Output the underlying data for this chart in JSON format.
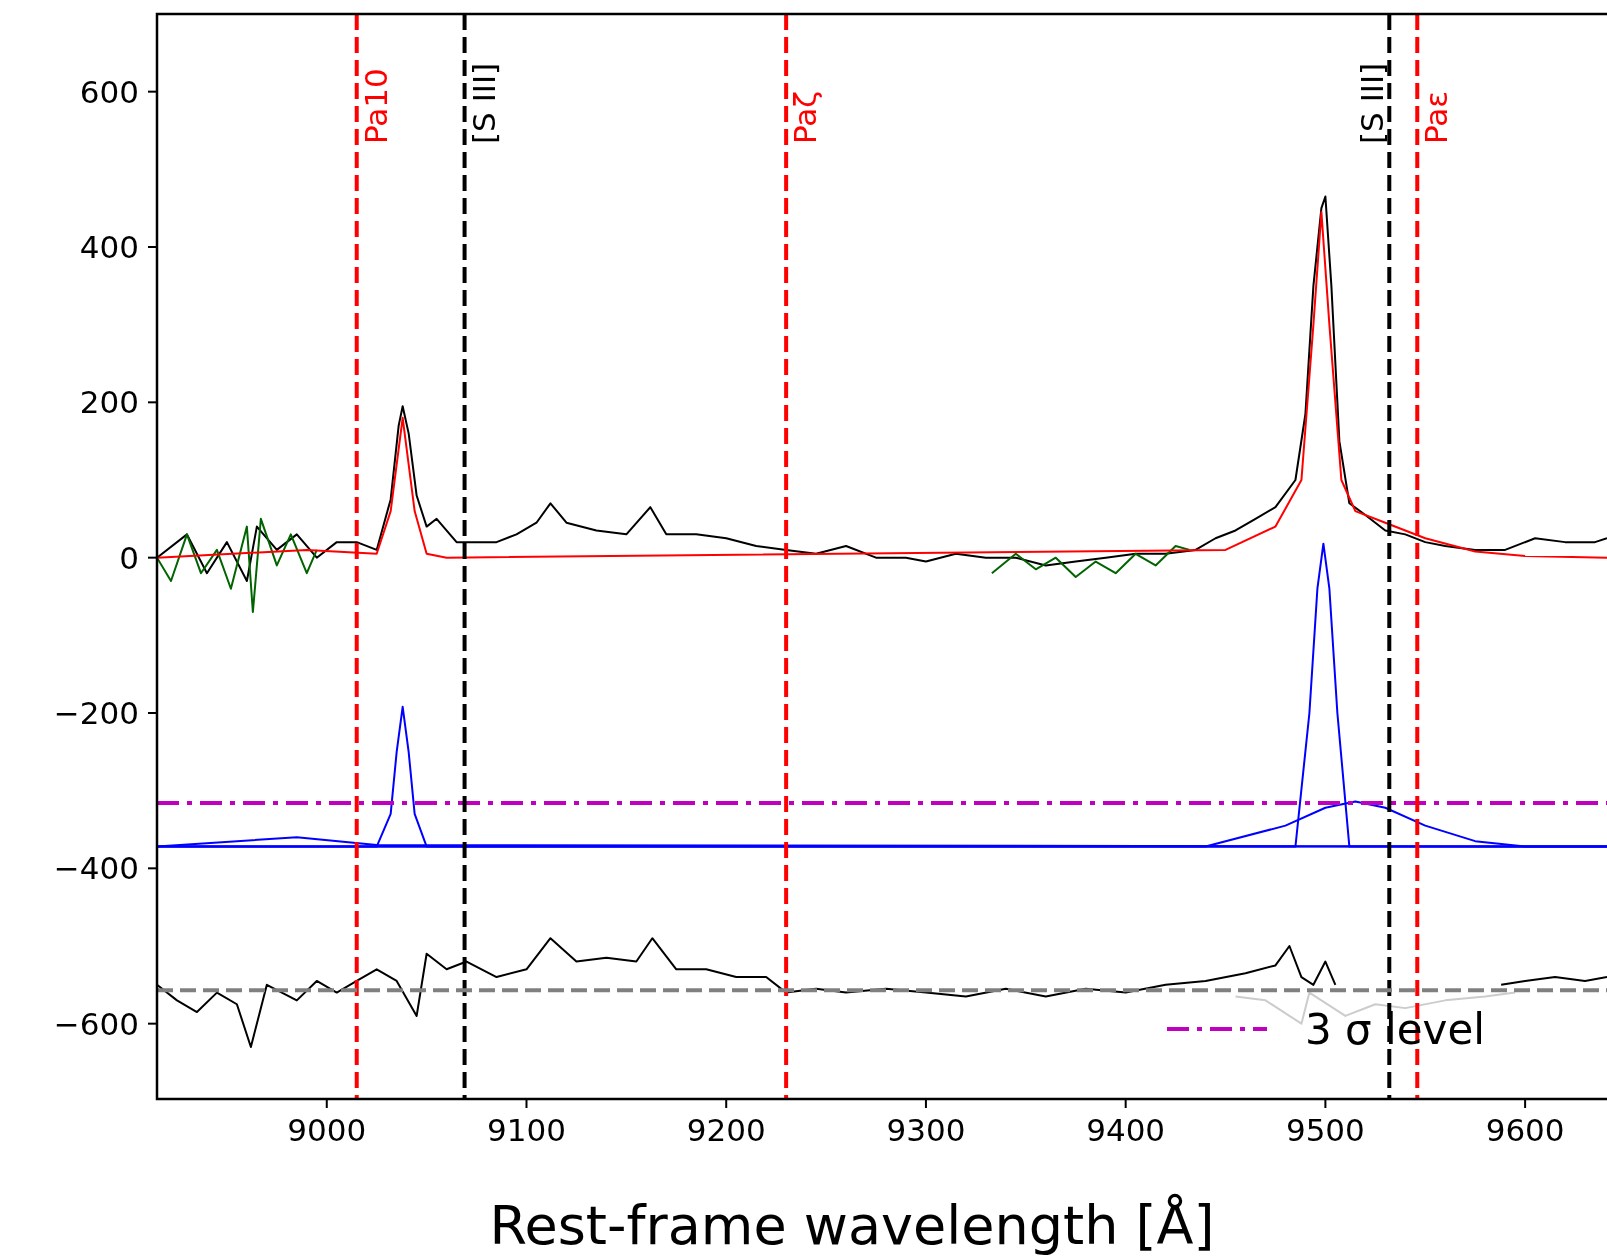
{
  "chart_data": {
    "type": "line",
    "xlabel": "Rest-frame wavelength [Å]",
    "xlim": [
      8915,
      9641
    ],
    "ylim": [
      -697,
      700
    ],
    "xticks": [
      9000,
      9100,
      9200,
      9300,
      9400,
      9500,
      9600
    ],
    "yticks": [
      {
        "value": -600,
        "label": "−600"
      },
      {
        "value": -400,
        "label": "−400"
      },
      {
        "value": -200,
        "label": "−200"
      },
      0,
      200,
      400,
      600
    ],
    "legend": "bottom right",
    "grid": false,
    "series": [
      {
        "color": "#000000",
        "x": [
          8915,
          8930,
          8940,
          8950,
          8960,
          8965,
          8975,
          8985,
          8995,
          9005,
          9015,
          9025,
          9032,
          9036,
          9038,
          9041,
          9045,
          9050,
          9055,
          9065,
          9075,
          9085,
          9095,
          9105,
          9112,
          9120,
          9135,
          9150,
          9162,
          9170,
          9185,
          9200,
          9215,
          9230,
          9245,
          9260,
          9275,
          9290,
          9300,
          9315,
          9330,
          9345,
          9360,
          9375,
          9390,
          9405,
          9420,
          9435,
          9445,
          9455,
          9465,
          9475,
          9485,
          9490,
          9494,
          9498,
          9500,
          9503,
          9507,
          9512,
          9520,
          9530,
          9540,
          9550,
          9560,
          9575,
          9590,
          9605,
          9620,
          9635,
          9641
        ],
        "values": [
          0,
          30,
          -20,
          20,
          -30,
          40,
          10,
          30,
          0,
          20,
          20,
          10,
          75,
          170,
          195,
          160,
          80,
          40,
          50,
          20,
          20,
          20,
          30,
          45,
          70,
          45,
          35,
          30,
          65,
          30,
          30,
          25,
          15,
          10,
          5,
          15,
          0,
          0,
          -5,
          5,
          0,
          0,
          -10,
          -5,
          0,
          5,
          5,
          10,
          25,
          35,
          50,
          65,
          100,
          185,
          350,
          450,
          465,
          350,
          150,
          70,
          55,
          35,
          30,
          20,
          15,
          10,
          10,
          25,
          20,
          20,
          25
        ]
      },
      {
        "color": "#006400",
        "x": [
          8915,
          8922,
          8930,
          8937,
          8945,
          8952,
          8960,
          8963,
          8967,
          8975,
          8982,
          8990,
          8995
        ],
        "values": [
          0,
          -30,
          30,
          -20,
          10,
          -40,
          40,
          -70,
          50,
          -10,
          30,
          -20,
          10
        ]
      },
      {
        "color": "#006400",
        "x": [
          9333,
          9345,
          9355,
          9365,
          9375,
          9385,
          9395,
          9405,
          9415,
          9425,
          9432
        ],
        "values": [
          -20,
          5,
          -15,
          0,
          -25,
          -5,
          -20,
          5,
          -10,
          15,
          10
        ]
      },
      {
        "color": "#ff0000",
        "x": [
          8915,
          8990,
          9025,
          9032,
          9038,
          9044,
          9050,
          9060,
          9450,
          9475,
          9488,
          9494,
          9498,
          9502,
          9508,
          9515,
          9530,
          9550,
          9575,
          9600,
          9641
        ],
        "values": [
          0,
          10,
          5,
          60,
          180,
          60,
          5,
          0,
          10,
          40,
          100,
          300,
          445,
          300,
          100,
          60,
          45,
          25,
          8,
          2,
          0
        ]
      },
      {
        "color": "#0000ff",
        "x": [
          8915,
          8985,
          9025,
          9641
        ],
        "values": [
          -372,
          -360,
          -370,
          -372
        ]
      },
      {
        "color": "#0000ff",
        "x": [
          8915,
          9025,
          9032,
          9035,
          9038,
          9041,
          9044,
          9050,
          9641
        ],
        "values": [
          -372,
          -372,
          -330,
          -250,
          -192,
          -250,
          -330,
          -372,
          -372
        ]
      },
      {
        "color": "#0000ff",
        "x": [
          8915,
          9485,
          9492,
          9496,
          9499,
          9502,
          9506,
          9512,
          9641
        ],
        "values": [
          -372,
          -372,
          -200,
          -40,
          18,
          -40,
          -200,
          -372,
          -372
        ]
      },
      {
        "color": "#0000ff",
        "x": [
          8915,
          9440,
          9480,
          9500,
          9515,
          9530,
          9550,
          9575,
          9600,
          9641
        ],
        "values": [
          -372,
          -372,
          -345,
          -322,
          -314,
          -322,
          -345,
          -365,
          -372,
          -372
        ]
      },
      {
        "name": "3 σ level",
        "color": "#bf00bf",
        "line_style": "dashed",
        "x": [
          8915,
          9641
        ],
        "values": [
          -316,
          -316
        ]
      },
      {
        "color": "#cccccc",
        "x": [
          9455,
          9470,
          9488,
          9492,
          9510,
          9525,
          9540,
          9560,
          9580,
          9595
        ],
        "values": [
          -565,
          -570,
          -600,
          -560,
          -590,
          -575,
          -580,
          -570,
          -565,
          -560
        ]
      },
      {
        "color": "#000000",
        "x": [
          8915,
          8925,
          8935,
          8945,
          8955,
          8962,
          8970,
          8985,
          8995,
          9005,
          9015,
          9025,
          9035,
          9045,
          9050,
          9060,
          9070,
          9085,
          9100,
          9112,
          9125,
          9140,
          9155,
          9163,
          9175,
          9190,
          9205,
          9220,
          9230,
          9245,
          9260,
          9280,
          9300,
          9320,
          9340,
          9360,
          9380,
          9400,
          9420,
          9440,
          9460,
          9475,
          9482,
          9488,
          9494,
          9500,
          9505,
          9512,
          9588,
          9600,
          9615,
          9630,
          9641
        ],
        "values": [
          -550,
          -570,
          -585,
          -560,
          -575,
          -630,
          -550,
          -570,
          -545,
          -560,
          -545,
          -530,
          -545,
          -590,
          -510,
          -530,
          -520,
          -540,
          -530,
          -490,
          -520,
          -515,
          -520,
          -490,
          -530,
          -530,
          -540,
          -540,
          -560,
          -555,
          -560,
          -555,
          -560,
          -565,
          -555,
          -565,
          -555,
          -560,
          -550,
          -545,
          -535,
          -525,
          -500,
          -540,
          -550,
          -520,
          -550,
          null,
          -550,
          -545,
          -540,
          -545,
          -540
        ]
      }
    ],
    "ref_lines": [
      {
        "axis": "x",
        "value": 9015,
        "label": "Pa10",
        "color": "#ff0000",
        "line_style": "dashed"
      },
      {
        "axis": "x",
        "value": 9069,
        "label": "[S III]",
        "color": "#000000",
        "line_style": "dashed"
      },
      {
        "axis": "x",
        "value": 9230,
        "label": "Paζ",
        "color": "#ff0000",
        "line_style": "dashed"
      },
      {
        "axis": "x",
        "value": 9532,
        "label": "[S III]",
        "color": "#000000",
        "line_style": "dashed"
      },
      {
        "axis": "x",
        "value": 9546,
        "label": "Paε",
        "color": "#ff0000",
        "line_style": "dashed"
      },
      {
        "axis": "y",
        "value": -557,
        "color": "#808080",
        "line_style": "dashed"
      }
    ]
  }
}
